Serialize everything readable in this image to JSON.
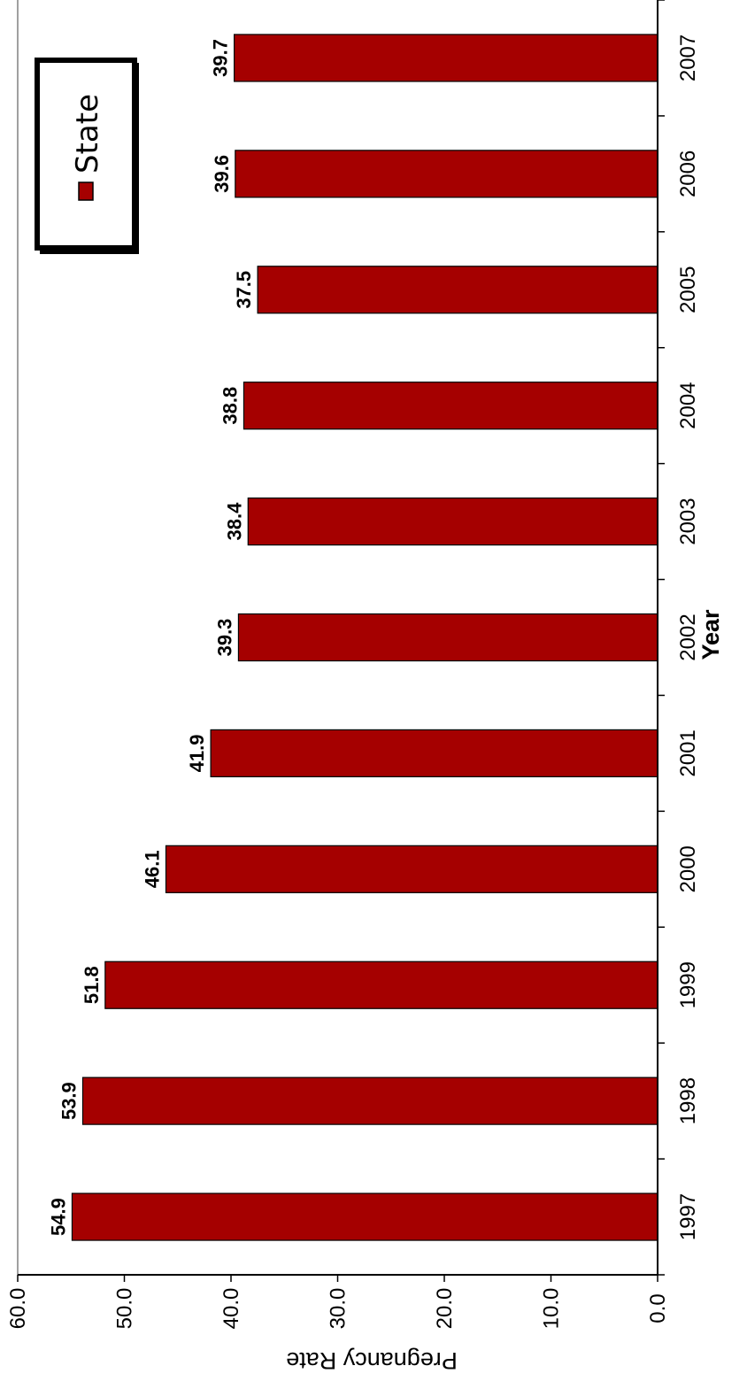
{
  "chart_data": {
    "type": "bar",
    "orientation": "horizontal",
    "categories": [
      "1997",
      "1998",
      "1999",
      "2000",
      "2001",
      "2002",
      "2003",
      "2004",
      "2005",
      "2006",
      "2007"
    ],
    "series": [
      {
        "name": "State",
        "color": "#A50000",
        "values": [
          54.9,
          53.9,
          51.8,
          46.1,
          41.9,
          39.3,
          38.4,
          38.8,
          37.5,
          39.6,
          39.7
        ]
      }
    ],
    "value_tick_labels": [
      "0.0",
      "10.0",
      "20.0",
      "30.0",
      "40.0",
      "50.0",
      "60.0"
    ],
    "value_axis_range": [
      0,
      60
    ],
    "xlabel": "Year",
    "ylabel": "Pregnancy Rate",
    "grid": false,
    "legend_position": "top-right",
    "data_labels": true,
    "image_rotation": "rotated 90 degrees clockwise"
  }
}
